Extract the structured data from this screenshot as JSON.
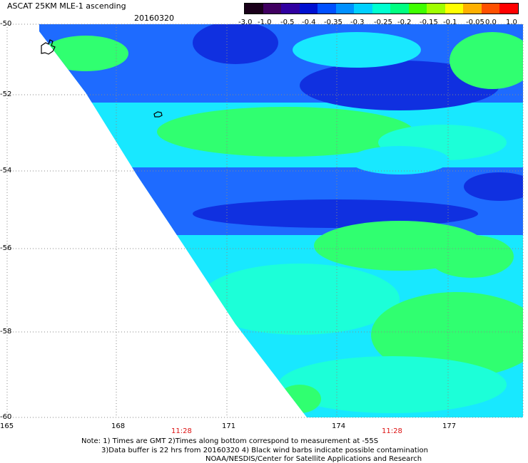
{
  "header": {
    "title": "ASCAT 25KM MLE-1 ascending",
    "date": "20160320"
  },
  "colorbar": {
    "labels": [
      "-3.0",
      "-1.0",
      "-0.5",
      "-0.4",
      "-0.35",
      "-0.3",
      "-0.25",
      "-0.2",
      "-0.15",
      "-0.1",
      "-0.05",
      "0.0",
      "1.0"
    ],
    "colors": [
      "#1a001a",
      "#400060",
      "#3000a0",
      "#0010d0",
      "#0050ff",
      "#0090ff",
      "#00d0ff",
      "#00ffd0",
      "#00ff80",
      "#40ff00",
      "#a0ff00",
      "#ffff00",
      "#ffb000",
      "#ff5000",
      "#ff0000"
    ]
  },
  "map": {
    "lat_labels": [
      "-50",
      "-52",
      "-54",
      "-56",
      "-58",
      "-60"
    ],
    "lon_labels": [
      "165",
      "168",
      "171",
      "174",
      "177"
    ],
    "time_labels": [
      "11:28",
      "11:28"
    ],
    "colors": {
      "background": "#ffffff",
      "grid": "#888888",
      "deep_blue": "#1030e0",
      "blue": "#1e6bff",
      "cyan": "#18e8ff",
      "aqua": "#1cffd8",
      "green": "#30ff70"
    }
  },
  "notes": {
    "line1": "Note: 1) Times are GMT 2)Times along bottom correspond to measurement at -55S",
    "line2": "3)Data buffer is 22 hrs from 20160320 4) Black wind barbs indicate possible contamination",
    "line3": "NOAA/NESDIS/Center for Satellite Applications and Research"
  }
}
